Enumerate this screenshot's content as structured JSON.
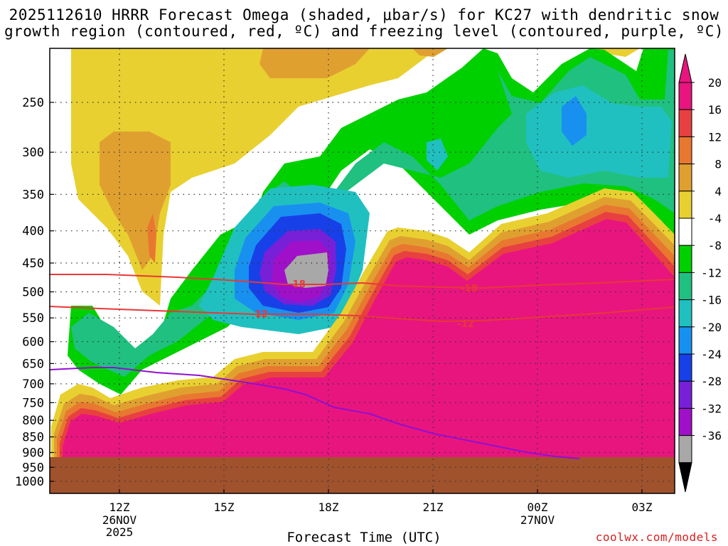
{
  "title_line1": "2025112610 HRRR Forecast Omega (shaded, μbar/s) for KC27 with dendritic snow",
  "title_line2": "growth region (contoured, red, ºC) and freezing level (contoured, purple, ºC)",
  "credit": "coolwx.com/models",
  "chart_data": {
    "type": "contour",
    "x_axis": {
      "title": "Forecast Time (UTC)",
      "ticks": [
        {
          "t": 12,
          "label": "12Z",
          "sub1": "26NOV",
          "sub2": "2025"
        },
        {
          "t": 15,
          "label": "15Z",
          "sub1": "",
          "sub2": ""
        },
        {
          "t": 18,
          "label": "18Z",
          "sub1": "",
          "sub2": ""
        },
        {
          "t": 21,
          "label": "21Z",
          "sub1": "",
          "sub2": ""
        },
        {
          "t": 24,
          "label": "00Z",
          "sub1": "27NOV",
          "sub2": ""
        },
        {
          "t": 27,
          "label": "03Z",
          "sub1": "",
          "sub2": ""
        }
      ],
      "range_hours": [
        10,
        28
      ]
    },
    "y_axis": {
      "scale": "log-pressure",
      "unit": "hPa",
      "ticks": [
        250,
        300,
        350,
        400,
        450,
        500,
        550,
        600,
        650,
        700,
        750,
        800,
        850,
        900,
        950,
        1000
      ],
      "range": [
        200,
        1030
      ]
    },
    "colorbar": {
      "labels": [
        "20",
        "16",
        "12",
        "8",
        "4",
        "-4",
        "-8",
        "-12",
        "-16",
        "-20",
        "-24",
        "-28",
        "-32",
        "-36"
      ],
      "colors": [
        "#e8157f",
        "#e84040",
        "#e87830",
        "#e0a030",
        "#e8d030",
        "#ffffff",
        "#00d000",
        "#20c080",
        "#20c0c0",
        "#1890f0",
        "#1840e8",
        "#7820d8",
        "#a010c8",
        "#a8a8a8"
      ],
      "extend_top_color": "#e8157f",
      "extend_bottom_color": "#000000"
    },
    "dgz_contours": [
      {
        "value": -18,
        "label": "-18",
        "color": "#e83838"
      },
      {
        "value": -12,
        "label": "-12",
        "color": "#e83838"
      }
    ],
    "freezing_level": {
      "value": 0,
      "color": "#9010d0"
    },
    "terrain_color": "#a0522d"
  }
}
